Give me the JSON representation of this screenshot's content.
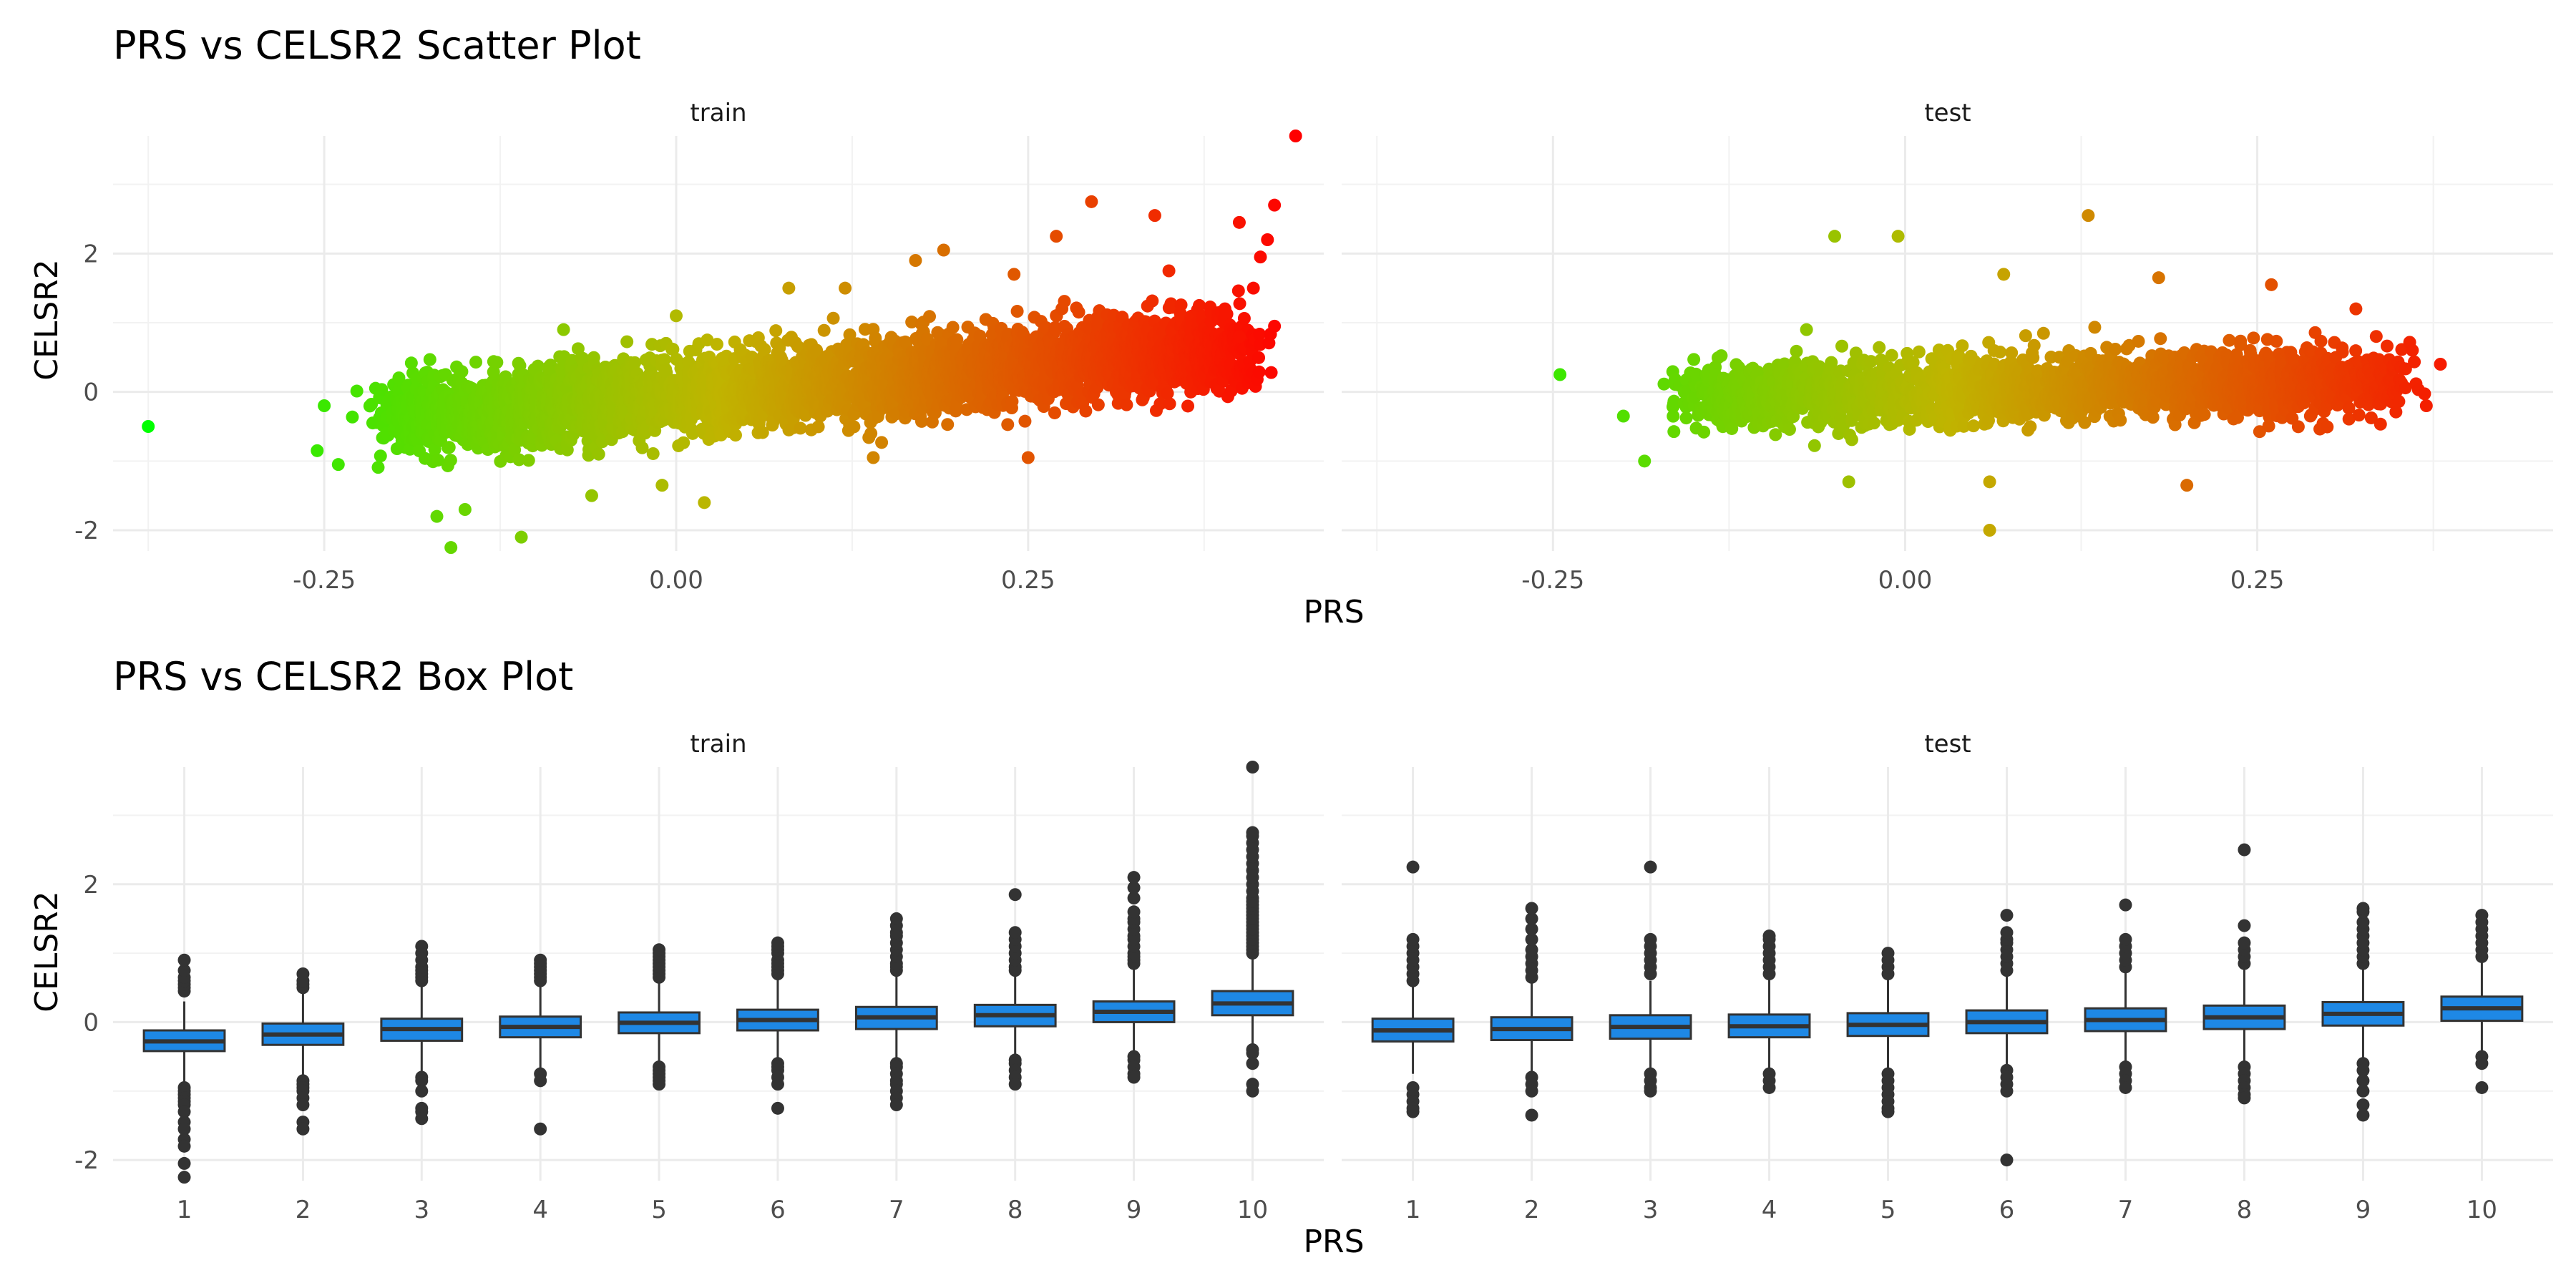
{
  "chart_data": [
    {
      "type": "scatter",
      "title": "PRS vs CELSR2 Scatter Plot",
      "xlabel": "PRS",
      "ylabel": "CELSR2",
      "xlim": [
        -0.4,
        0.46
      ],
      "ylim": [
        -2.3,
        3.7
      ],
      "x_ticks": [
        -0.25,
        0.0,
        0.25
      ],
      "x_tick_labels": [
        "-0.25",
        "0.00",
        "0.25"
      ],
      "y_ticks": [
        -2,
        0,
        2
      ],
      "y_tick_labels": [
        "-2",
        "0",
        "2"
      ],
      "grid": true,
      "color_scale": {
        "low": "#00FF00",
        "mid": "#C0B400",
        "high": "#FF0000",
        "mapped_to": "PRS"
      },
      "panels": [
        {
          "label": "train",
          "bulk": {
            "x_range": [
              -0.2,
              0.4
            ],
            "slope": 1.7,
            "intercept": -0.05,
            "spread": 0.28,
            "n": 4200
          },
          "points": [
            {
              "x": -0.375,
              "y": -0.5
            },
            {
              "x": -0.25,
              "y": -0.2
            },
            {
              "x": -0.255,
              "y": -0.85
            },
            {
              "x": -0.24,
              "y": -1.05
            },
            {
              "x": -0.17,
              "y": -1.8
            },
            {
              "x": -0.16,
              "y": -2.25
            },
            {
              "x": -0.15,
              "y": -1.7
            },
            {
              "x": -0.11,
              "y": -2.1
            },
            {
              "x": -0.08,
              "y": 0.9
            },
            {
              "x": -0.06,
              "y": -1.5
            },
            {
              "x": -0.01,
              "y": -1.35
            },
            {
              "x": 0.0,
              "y": 1.1
            },
            {
              "x": 0.02,
              "y": -1.6
            },
            {
              "x": 0.08,
              "y": 1.5
            },
            {
              "x": 0.12,
              "y": 1.5
            },
            {
              "x": 0.17,
              "y": 1.9
            },
            {
              "x": 0.19,
              "y": 2.05
            },
            {
              "x": 0.24,
              "y": 1.7
            },
            {
              "x": 0.27,
              "y": 2.25
            },
            {
              "x": 0.295,
              "y": 2.75
            },
            {
              "x": 0.34,
              "y": 2.55
            },
            {
              "x": 0.35,
              "y": 1.75
            },
            {
              "x": 0.4,
              "y": 2.45
            },
            {
              "x": 0.42,
              "y": 2.2
            },
            {
              "x": 0.425,
              "y": 2.7
            },
            {
              "x": 0.415,
              "y": 1.95
            },
            {
              "x": 0.41,
              "y": 1.5
            },
            {
              "x": 0.44,
              "y": 3.7
            },
            {
              "x": 0.25,
              "y": -0.95
            },
            {
              "x": 0.14,
              "y": -0.95
            },
            {
              "x": 0.4,
              "y": 0.8
            },
            {
              "x": 0.425,
              "y": 0.95
            }
          ]
        },
        {
          "label": "test",
          "bulk": {
            "x_range": [
              -0.15,
              0.35
            ],
            "slope": 0.55,
            "intercept": 0.0,
            "spread": 0.24,
            "n": 2200
          },
          "points": [
            {
              "x": -0.245,
              "y": 0.25
            },
            {
              "x": -0.2,
              "y": -0.35
            },
            {
              "x": -0.185,
              "y": -1.0
            },
            {
              "x": -0.07,
              "y": 0.9
            },
            {
              "x": -0.05,
              "y": 2.25
            },
            {
              "x": -0.005,
              "y": 2.25
            },
            {
              "x": 0.06,
              "y": -2.0
            },
            {
              "x": 0.13,
              "y": 2.55
            },
            {
              "x": 0.26,
              "y": 1.55
            },
            {
              "x": 0.32,
              "y": 1.2
            },
            {
              "x": 0.38,
              "y": 0.4
            },
            {
              "x": 0.37,
              "y": -0.2
            },
            {
              "x": 0.18,
              "y": 1.65
            },
            {
              "x": 0.07,
              "y": 1.7
            },
            {
              "x": -0.04,
              "y": -1.3
            },
            {
              "x": 0.06,
              "y": -1.3
            },
            {
              "x": 0.2,
              "y": -1.35
            }
          ]
        }
      ]
    },
    {
      "type": "box",
      "title": "PRS vs CELSR2 Box Plot",
      "xlabel": "PRS",
      "ylabel": "CELSR2",
      "categories": [
        "1",
        "2",
        "3",
        "4",
        "5",
        "6",
        "7",
        "8",
        "9",
        "10"
      ],
      "ylim": [
        -2.3,
        3.7
      ],
      "y_ticks": [
        -2,
        0,
        2
      ],
      "y_tick_labels": [
        "-2",
        "0",
        "2"
      ],
      "fill_color": "#1E88E5",
      "outline_color": "#333333",
      "grid": true,
      "panels": [
        {
          "label": "train",
          "boxes": [
            {
              "q1": -0.42,
              "median": -0.28,
              "q3": -0.12,
              "whisker_low": -0.88,
              "whisker_high": 0.3,
              "outliers": [
                0.45,
                0.5,
                0.55,
                0.6,
                0.65,
                0.75,
                0.9,
                -0.95,
                -1.0,
                -1.05,
                -1.1,
                -1.15,
                -1.2,
                -1.3,
                -1.45,
                -1.55,
                -1.7,
                -1.8,
                -2.05,
                -2.25
              ]
            },
            {
              "q1": -0.33,
              "median": -0.18,
              "q3": -0.02,
              "whisker_low": -0.8,
              "whisker_high": 0.45,
              "outliers": [
                0.5,
                0.55,
                0.6,
                0.7,
                -0.85,
                -0.9,
                -0.95,
                -1.0,
                -1.1,
                -1.2,
                -1.45,
                -1.55
              ]
            },
            {
              "q1": -0.27,
              "median": -0.1,
              "q3": 0.05,
              "whisker_low": -0.72,
              "whisker_high": 0.52,
              "outliers": [
                0.6,
                0.65,
                0.7,
                0.75,
                0.8,
                0.9,
                1.0,
                1.1,
                -0.8,
                -0.85,
                -1.0,
                -1.25,
                -1.3,
                -1.4
              ]
            },
            {
              "q1": -0.22,
              "median": -0.07,
              "q3": 0.08,
              "whisker_low": -0.68,
              "whisker_high": 0.55,
              "outliers": [
                0.6,
                0.65,
                0.7,
                0.75,
                0.8,
                0.85,
                0.9,
                -0.75,
                -0.85,
                -1.55
              ]
            },
            {
              "q1": -0.16,
              "median": -0.01,
              "q3": 0.14,
              "whisker_low": -0.6,
              "whisker_high": 0.58,
              "outliers": [
                0.65,
                0.7,
                0.75,
                0.8,
                0.85,
                0.9,
                0.95,
                1.0,
                1.05,
                -0.65,
                -0.7,
                -0.75,
                -0.8,
                -0.85,
                -0.9
              ]
            },
            {
              "q1": -0.12,
              "median": 0.03,
              "q3": 0.18,
              "whisker_low": -0.55,
              "whisker_high": 0.63,
              "outliers": [
                0.7,
                0.75,
                0.8,
                0.85,
                0.9,
                1.0,
                1.05,
                1.1,
                1.15,
                -0.6,
                -0.65,
                -0.7,
                -0.8,
                -0.9,
                -1.25
              ]
            },
            {
              "q1": -0.1,
              "median": 0.07,
              "q3": 0.22,
              "whisker_low": -0.52,
              "whisker_high": 0.7,
              "outliers": [
                0.75,
                0.8,
                0.85,
                0.95,
                1.05,
                1.15,
                1.25,
                1.3,
                1.4,
                1.5,
                -0.6,
                -0.65,
                -0.75,
                -0.85,
                -0.9,
                -1.0,
                -1.1,
                -1.2
              ]
            },
            {
              "q1": -0.06,
              "median": 0.1,
              "q3": 0.25,
              "whisker_low": -0.5,
              "whisker_high": 0.72,
              "outliers": [
                0.75,
                0.8,
                0.9,
                1.0,
                1.1,
                1.2,
                1.3,
                1.85,
                -0.55,
                -0.6,
                -0.7,
                -0.8,
                -0.9
              ]
            },
            {
              "q1": 0.0,
              "median": 0.15,
              "q3": 0.3,
              "whisker_low": -0.45,
              "whisker_high": 0.78,
              "outliers": [
                0.85,
                0.9,
                0.95,
                1.0,
                1.1,
                1.2,
                1.25,
                1.35,
                1.45,
                1.5,
                1.6,
                1.8,
                1.95,
                2.1,
                -0.5,
                -0.55,
                -0.65,
                -0.75,
                -0.8
              ]
            },
            {
              "q1": 0.1,
              "median": 0.27,
              "q3": 0.45,
              "whisker_low": -0.35,
              "whisker_high": 0.95,
              "outliers": [
                1.0,
                1.05,
                1.1,
                1.15,
                1.2,
                1.25,
                1.3,
                1.35,
                1.4,
                1.45,
                1.5,
                1.55,
                1.6,
                1.65,
                1.7,
                1.75,
                1.8,
                1.9,
                2.0,
                2.1,
                2.2,
                2.3,
                2.4,
                2.5,
                2.6,
                2.7,
                2.75,
                3.7,
                -0.4,
                -0.45,
                -0.6,
                -0.9,
                -1.0
              ]
            }
          ]
        },
        {
          "label": "test",
          "boxes": [
            {
              "q1": -0.28,
              "median": -0.12,
              "q3": 0.05,
              "whisker_low": -0.75,
              "whisker_high": 0.55,
              "outliers": [
                0.6,
                0.7,
                0.8,
                0.9,
                1.0,
                1.1,
                1.2,
                2.25,
                -0.95,
                -1.05,
                -1.15,
                -1.25,
                -1.3
              ]
            },
            {
              "q1": -0.26,
              "median": -0.1,
              "q3": 0.07,
              "whisker_low": -0.72,
              "whisker_high": 0.58,
              "outliers": [
                0.65,
                0.75,
                0.85,
                0.95,
                1.05,
                1.2,
                1.35,
                1.5,
                1.65,
                -0.8,
                -0.9,
                -1.0,
                -1.35
              ]
            },
            {
              "q1": -0.24,
              "median": -0.07,
              "q3": 0.1,
              "whisker_low": -0.7,
              "whisker_high": 0.6,
              "outliers": [
                0.7,
                0.8,
                0.9,
                1.0,
                1.1,
                1.2,
                2.25,
                -0.75,
                -0.85,
                -0.95,
                -1.0
              ]
            },
            {
              "q1": -0.22,
              "median": -0.06,
              "q3": 0.11,
              "whisker_low": -0.68,
              "whisker_high": 0.62,
              "outliers": [
                0.7,
                0.8,
                0.9,
                1.0,
                1.1,
                1.2,
                1.25,
                -0.75,
                -0.85,
                -0.95
              ]
            },
            {
              "q1": -0.2,
              "median": -0.04,
              "q3": 0.13,
              "whisker_low": -0.66,
              "whisker_high": 0.64,
              "outliers": [
                0.7,
                0.8,
                0.9,
                1.0,
                -0.75,
                -0.85,
                -0.95,
                -1.05,
                -1.15,
                -1.25,
                -1.3
              ]
            },
            {
              "q1": -0.16,
              "median": 0.0,
              "q3": 0.17,
              "whisker_low": -0.62,
              "whisker_high": 0.68,
              "outliers": [
                0.75,
                0.85,
                0.95,
                1.05,
                1.15,
                1.2,
                1.3,
                1.55,
                -0.7,
                -0.8,
                -0.9,
                -1.0,
                -2.0
              ]
            },
            {
              "q1": -0.13,
              "median": 0.03,
              "q3": 0.2,
              "whisker_low": -0.6,
              "whisker_high": 0.72,
              "outliers": [
                0.8,
                0.9,
                1.0,
                1.1,
                1.2,
                1.7,
                -0.65,
                -0.75,
                -0.85,
                -0.95
              ]
            },
            {
              "q1": -0.1,
              "median": 0.07,
              "q3": 0.24,
              "whisker_low": -0.57,
              "whisker_high": 0.76,
              "outliers": [
                0.85,
                0.95,
                1.05,
                1.15,
                1.4,
                2.5,
                -0.65,
                -0.75,
                -0.85,
                -0.95,
                -1.05,
                -1.1
              ]
            },
            {
              "q1": -0.05,
              "median": 0.12,
              "q3": 0.29,
              "whisker_low": -0.52,
              "whisker_high": 0.8,
              "outliers": [
                0.85,
                0.95,
                1.05,
                1.15,
                1.25,
                1.35,
                1.45,
                1.6,
                1.65,
                -0.6,
                -0.7,
                -0.85,
                -1.0,
                -1.2,
                -1.35
              ]
            },
            {
              "q1": 0.02,
              "median": 0.2,
              "q3": 0.37,
              "whisker_low": -0.45,
              "whisker_high": 0.88,
              "outliers": [
                0.95,
                1.05,
                1.15,
                1.25,
                1.35,
                1.45,
                1.55,
                -0.5,
                -0.6,
                -0.95
              ]
            }
          ]
        }
      ]
    }
  ]
}
